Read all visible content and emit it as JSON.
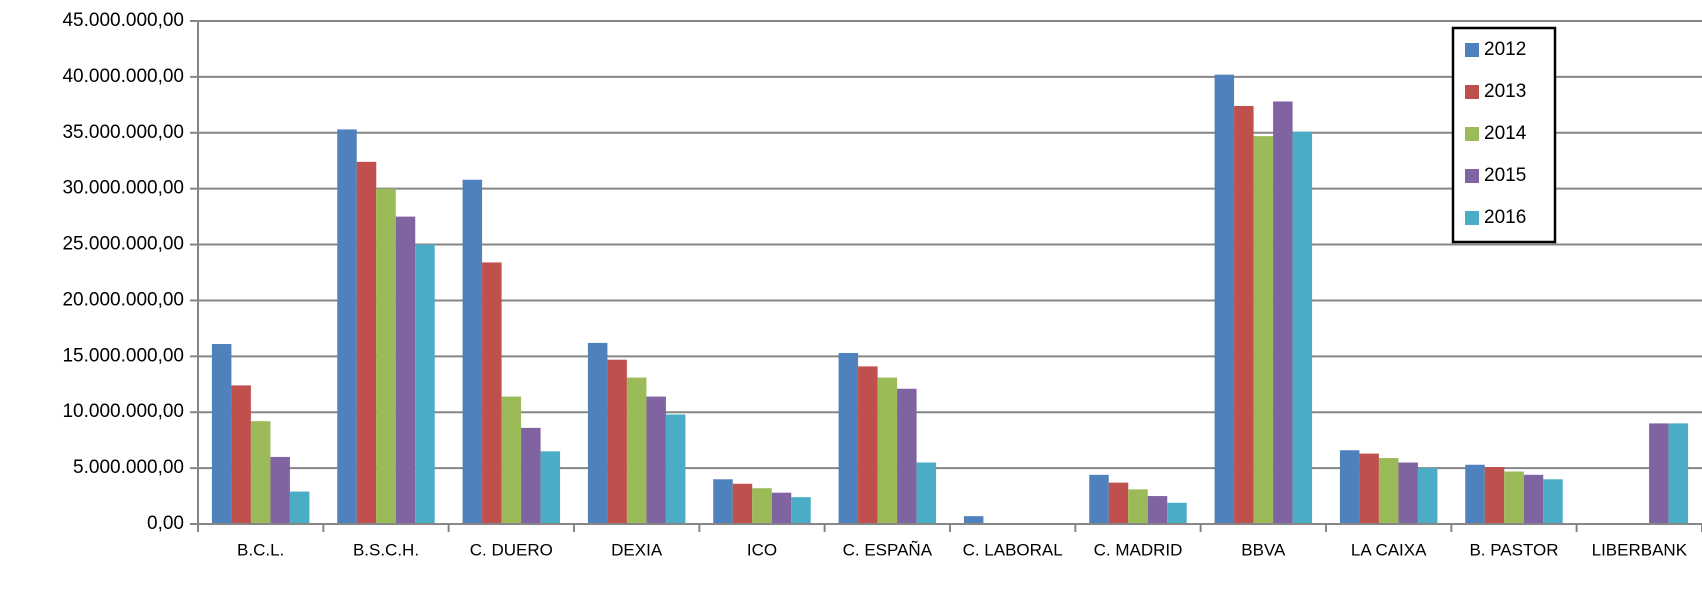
{
  "chart_data": {
    "type": "bar",
    "categories": [
      "B.C.L.",
      "B.S.C.H.",
      "C. DUERO",
      "DEXIA",
      "ICO",
      "C. ESPAÑA",
      "C. LABORAL",
      "C. MADRID",
      "BBVA",
      "LA CAIXA",
      "B. PASTOR",
      "LIBERBANK"
    ],
    "series": [
      {
        "name": "2012",
        "color": "#4f81bd",
        "values": [
          16100000,
          35300000,
          30800000,
          16200000,
          4000000,
          15300000,
          700000,
          4400000,
          40200000,
          6600000,
          5300000,
          null
        ]
      },
      {
        "name": "2013",
        "color": "#c0504d",
        "values": [
          12400000,
          32400000,
          23400000,
          14700000,
          3600000,
          14100000,
          null,
          3700000,
          37400000,
          6300000,
          5100000,
          null
        ]
      },
      {
        "name": "2014",
        "color": "#9bbb59",
        "values": [
          9200000,
          30000000,
          11400000,
          13100000,
          3200000,
          13100000,
          null,
          3100000,
          34700000,
          5900000,
          4700000,
          null
        ]
      },
      {
        "name": "2015",
        "color": "#8064a2",
        "values": [
          6000000,
          27500000,
          8600000,
          11400000,
          2800000,
          12100000,
          null,
          2500000,
          37800000,
          5500000,
          4400000,
          9000000
        ]
      },
      {
        "name": "2016",
        "color": "#4bacc6",
        "values": [
          2900000,
          25000000,
          6500000,
          9800000,
          2400000,
          5500000,
          null,
          1900000,
          35100000,
          5000000,
          4000000,
          9000000
        ]
      }
    ],
    "ylim": [
      0,
      45000000
    ],
    "yticks": [
      {
        "value": 0,
        "label": "0,00"
      },
      {
        "value": 5000000,
        "label": "5.000.000,00"
      },
      {
        "value": 10000000,
        "label": "10.000.000,00"
      },
      {
        "value": 15000000,
        "label": "15.000.000,00"
      },
      {
        "value": 20000000,
        "label": "20.000.000,00"
      },
      {
        "value": 25000000,
        "label": "25.000.000,00"
      },
      {
        "value": 30000000,
        "label": "30.000.000,00"
      },
      {
        "value": 35000000,
        "label": "35.000.000,00"
      },
      {
        "value": 40000000,
        "label": "40.000.000,00"
      },
      {
        "value": 45000000,
        "label": "45.000.000,00"
      }
    ],
    "grid": true,
    "legend": "top-right"
  }
}
